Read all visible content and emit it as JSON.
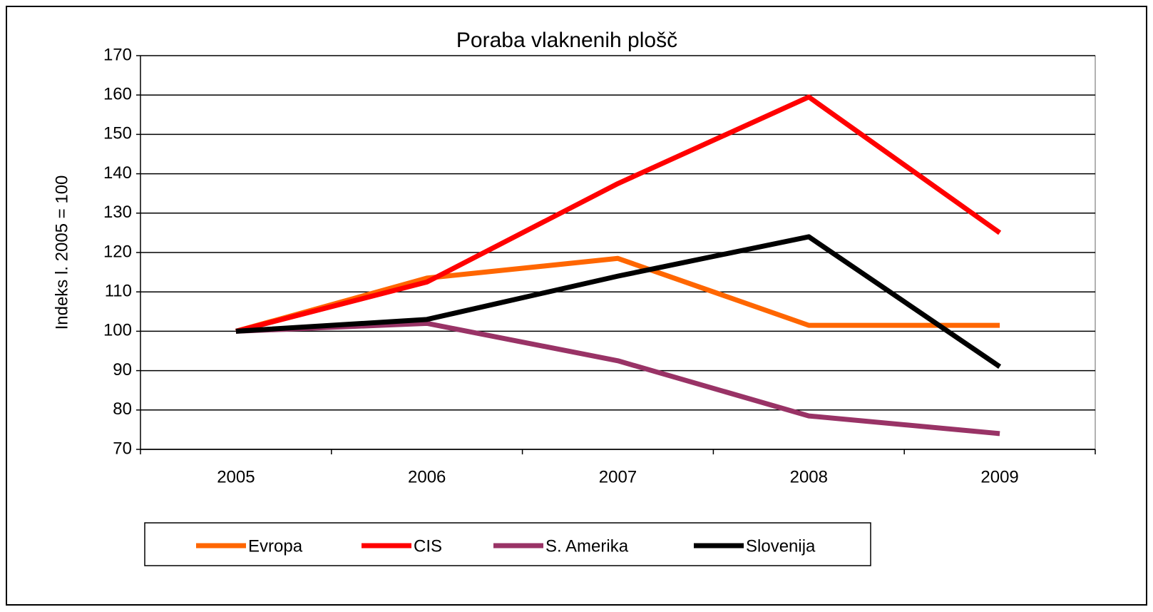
{
  "chart_data": {
    "type": "line",
    "title": "Poraba vlaknenih plošč",
    "ylabel": "Indeks l. 2005 = 100",
    "categories": [
      "2005",
      "2006",
      "2007",
      "2008",
      "2009"
    ],
    "series": [
      {
        "name": "Evropa",
        "color": "#ff6600",
        "values": [
          100,
          113.5,
          118.5,
          101.5,
          101.5
        ]
      },
      {
        "name": "CIS",
        "color": "#ff0000",
        "values": [
          100,
          112.5,
          137.5,
          159.5,
          125
        ]
      },
      {
        "name": "S. Amerika",
        "color": "#993366",
        "values": [
          100,
          102,
          92.5,
          78.5,
          74
        ]
      },
      {
        "name": "Slovenija",
        "color": "#000000",
        "values": [
          100,
          103,
          114,
          124,
          91
        ]
      }
    ],
    "ylim": [
      70,
      170
    ],
    "yticks": [
      70,
      80,
      90,
      100,
      110,
      120,
      130,
      140,
      150,
      160,
      170
    ],
    "grid": true,
    "legend": "bottom"
  }
}
